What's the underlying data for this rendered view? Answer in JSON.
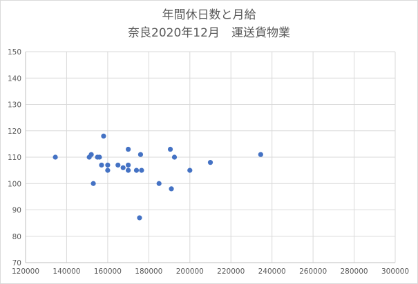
{
  "chart_data": {
    "type": "scatter",
    "title": "年間休日数と月給",
    "subtitle": "奈良2020年12月　運送貨物業",
    "xlim": [
      120000,
      300000
    ],
    "ylim": [
      70,
      150
    ],
    "x_ticks": [
      120000,
      140000,
      160000,
      180000,
      200000,
      220000,
      240000,
      260000,
      280000,
      300000
    ],
    "y_ticks": [
      70,
      80,
      90,
      100,
      110,
      120,
      130,
      140,
      150
    ],
    "grid": true,
    "series": [
      {
        "color": "#4472c4",
        "points": [
          {
            "x": 134500,
            "y": 110
          },
          {
            "x": 151000,
            "y": 110
          },
          {
            "x": 152000,
            "y": 111
          },
          {
            "x": 153000,
            "y": 100
          },
          {
            "x": 155000,
            "y": 110
          },
          {
            "x": 156000,
            "y": 110
          },
          {
            "x": 157000,
            "y": 107
          },
          {
            "x": 158000,
            "y": 118
          },
          {
            "x": 160000,
            "y": 107
          },
          {
            "x": 160000,
            "y": 105
          },
          {
            "x": 165000,
            "y": 107
          },
          {
            "x": 167500,
            "y": 106
          },
          {
            "x": 170000,
            "y": 113
          },
          {
            "x": 170000,
            "y": 107
          },
          {
            "x": 170000,
            "y": 105
          },
          {
            "x": 174000,
            "y": 105
          },
          {
            "x": 175500,
            "y": 87
          },
          {
            "x": 176000,
            "y": 111
          },
          {
            "x": 176500,
            "y": 105
          },
          {
            "x": 185000,
            "y": 100
          },
          {
            "x": 190500,
            "y": 113
          },
          {
            "x": 191000,
            "y": 98
          },
          {
            "x": 192500,
            "y": 110
          },
          {
            "x": 200000,
            "y": 105
          },
          {
            "x": 210000,
            "y": 108
          },
          {
            "x": 234500,
            "y": 111
          }
        ]
      }
    ]
  }
}
